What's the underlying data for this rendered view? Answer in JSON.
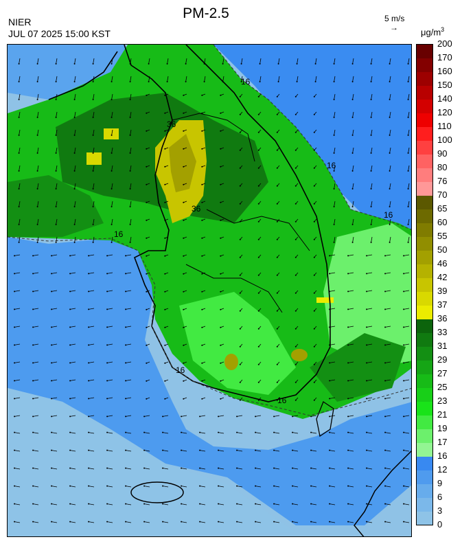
{
  "header": {
    "title": "PM-2.5",
    "agency": "NIER",
    "datetime": "JUL 07 2025 15:00 KST",
    "vector_reference": "5 m/s",
    "vector_arrow": "→",
    "unit_base": "μg/m",
    "unit_exp": "3"
  },
  "map": {
    "contour_labels": [
      "16",
      "16",
      "16",
      "16",
      "16",
      "36",
      "36",
      "16"
    ]
  },
  "legend": {
    "ticks": [
      "0",
      "3",
      "6",
      "9",
      "12",
      "16",
      "17",
      "19",
      "21",
      "23",
      "25",
      "27",
      "29",
      "31",
      "33",
      "36",
      "37",
      "39",
      "42",
      "46",
      "50",
      "55",
      "60",
      "65",
      "70",
      "76",
      "80",
      "90",
      "100",
      "110",
      "120",
      "140",
      "150",
      "160",
      "170",
      "200"
    ],
    "colors": [
      "#8ec3e7",
      "#7bb8ea",
      "#67acec",
      "#4f9bee",
      "#3889f1",
      "#93f593",
      "#6cf06c",
      "#42ea42",
      "#19e319",
      "#18cf18",
      "#17bb17",
      "#15a515",
      "#138f13",
      "#107a10",
      "#0c640c",
      "#ebec00",
      "#d9d900",
      "#c8c500",
      "#b5b200",
      "#a3a000",
      "#918e00",
      "#807c00",
      "#6d6a00",
      "#5b5800",
      "#ff9898",
      "#ff7d7d",
      "#ff6262",
      "#ff4040",
      "#ff1e1e",
      "#ee0000",
      "#d30000",
      "#b80000",
      "#9d0000",
      "#830000",
      "#680000"
    ]
  }
}
